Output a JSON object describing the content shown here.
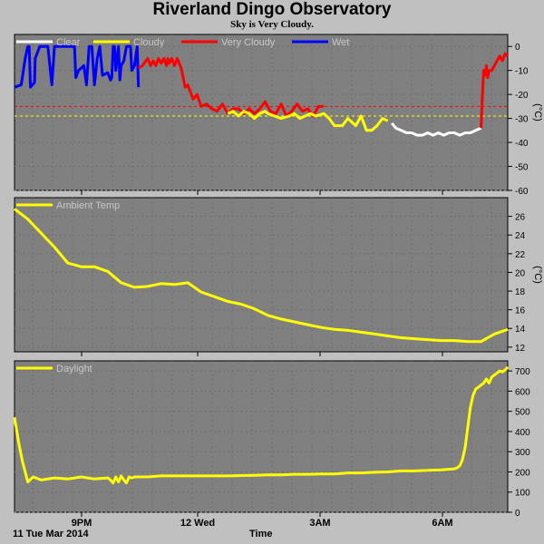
{
  "title": "Riverland Dingo Observatory",
  "subtitle": "Sky is Very Cloudy.",
  "time_label": "Time",
  "date_label": "11 Tue Mar 2014",
  "x_ticks": [
    "9PM",
    "12 Wed",
    "3AM",
    "6AM"
  ],
  "colors": {
    "background": "#c0c0c0",
    "panel": "#808080",
    "clear": "#ffffff",
    "cloudy": "#ffff00",
    "very_cloudy": "#ff0000",
    "wet": "#0000ff",
    "threshold_red": "#ff0000",
    "threshold_yellow": "#ffff00"
  },
  "chart_data": [
    {
      "type": "line",
      "name": "sky",
      "unit": "(°C)",
      "ylim": [
        -60,
        5
      ],
      "yticks": [
        0,
        -10,
        -20,
        -30,
        -40,
        -50,
        -60
      ],
      "grid": true,
      "legend": [
        "Clear",
        "Cloudy",
        "Very Cloudy",
        "Wet"
      ],
      "thresholds": [
        -25,
        -29
      ],
      "series": [
        {
          "name": "Wet",
          "color": "#0000ff",
          "x": [
            0,
            5,
            8,
            10,
            11,
            12,
            15,
            15.5,
            19,
            25,
            28,
            30,
            40,
            45,
            46,
            48,
            52,
            54,
            56,
            58,
            60,
            62,
            64,
            66,
            70,
            72,
            73,
            74,
            75,
            76,
            78,
            79,
            80,
            82,
            84,
            87,
            88,
            90,
            92,
            93
          ],
          "y": [
            -17,
            -16,
            -5,
            0,
            0,
            -17,
            -15,
            -5,
            0,
            0,
            -16,
            0,
            0,
            0,
            -13,
            -10,
            -8,
            -16,
            0,
            0,
            -16,
            -5,
            0,
            -12,
            -11,
            -14,
            -13,
            0,
            0,
            -10,
            0,
            -14,
            -8,
            -6,
            0,
            0,
            -10,
            -8,
            0,
            -17
          ]
        },
        {
          "name": "Very Cloudy",
          "color": "#ff0000",
          "x": [
            93,
            96,
            100,
            102,
            104,
            106,
            108,
            110,
            112,
            114,
            115,
            116,
            117,
            118,
            120,
            122,
            125,
            128,
            130,
            134,
            137,
            140,
            144,
            148,
            152,
            156,
            160,
            164,
            168,
            172,
            176,
            180,
            184,
            188,
            192,
            196,
            200,
            204,
            208,
            212,
            216,
            220,
            224,
            228,
            232
          ],
          "y": [
            -9,
            -8,
            -5,
            -8,
            -6,
            -8,
            -5,
            -7,
            -5,
            -8,
            -5,
            -7,
            -6,
            -5,
            -8,
            -5,
            -9,
            -17,
            -16,
            -22,
            -20,
            -25,
            -24,
            -26,
            -27,
            -24,
            -28,
            -26,
            -26,
            -28,
            -26,
            -28,
            -26,
            -23,
            -27,
            -28,
            -24,
            -29,
            -27,
            -24,
            -27,
            -26,
            -29,
            -25,
            -25
          ]
        },
        {
          "name": "Cloudy",
          "color": "#ffff00",
          "x": [
            160,
            164,
            168,
            172,
            176,
            180,
            184,
            188,
            190,
            200,
            206,
            210,
            214,
            218,
            222,
            226,
            232,
            236,
            240,
            246,
            250,
            256,
            260,
            264,
            268,
            272,
            276,
            280
          ],
          "y": [
            -28,
            -27,
            -29,
            -27,
            -28,
            -30,
            -28,
            -27,
            -28,
            -30,
            -29,
            -28,
            -30,
            -29,
            -28,
            -29,
            -28,
            -30,
            -33,
            -33,
            -30,
            -33,
            -29,
            -35,
            -35,
            -33,
            -30,
            -31
          ]
        },
        {
          "name": "Clear",
          "color": "#ffffff",
          "x": [
            283,
            286,
            290,
            294,
            298,
            302,
            306,
            310,
            314,
            318,
            322,
            326,
            330,
            334,
            338,
            342,
            346,
            350
          ],
          "y": [
            -32,
            -34,
            -35,
            -36,
            -36,
            -37,
            -37,
            -36,
            -37,
            -36,
            -37,
            -36,
            -36,
            -37,
            -36,
            -36,
            -35,
            -34
          ]
        },
        {
          "name": "Very Cloudy",
          "color": "#ff0000",
          "x": [
            350,
            351,
            352,
            353,
            354,
            355,
            356,
            358,
            360,
            362,
            364,
            366,
            368,
            370
          ],
          "y": [
            -34,
            -20,
            -10,
            -12,
            -8,
            -13,
            -10,
            -10,
            -8,
            -6,
            -4,
            -6,
            -3,
            -4
          ]
        }
      ]
    },
    {
      "type": "line",
      "name": "ambient",
      "unit": "(°C)",
      "ylim": [
        11.5,
        28
      ],
      "yticks": [
        12,
        14,
        16,
        18,
        20,
        22,
        24,
        26
      ],
      "grid": true,
      "legend": [
        "Ambient Temp"
      ],
      "series": [
        {
          "name": "Ambient Temp",
          "color": "#ffff00",
          "x": [
            0,
            10,
            20,
            30,
            40,
            50,
            60,
            70,
            80,
            90,
            100,
            110,
            120,
            130,
            140,
            150,
            160,
            170,
            180,
            190,
            200,
            210,
            220,
            230,
            240,
            250,
            260,
            270,
            280,
            290,
            300,
            310,
            320,
            330,
            340,
            350,
            360,
            370
          ],
          "y": [
            26.8,
            25.7,
            24.2,
            22.7,
            21.0,
            20.6,
            20.6,
            20.1,
            18.9,
            18.4,
            18.5,
            18.8,
            18.7,
            18.9,
            17.9,
            17.4,
            16.9,
            16.6,
            16.1,
            15.4,
            15.0,
            14.7,
            14.4,
            14.1,
            13.9,
            13.8,
            13.6,
            13.4,
            13.2,
            13.0,
            12.9,
            12.8,
            12.7,
            12.7,
            12.6,
            12.6,
            13.4,
            13.9
          ]
        }
      ]
    },
    {
      "type": "line",
      "name": "daylight",
      "unit": "",
      "ylim": [
        0,
        750
      ],
      "yticks": [
        0,
        100,
        200,
        300,
        400,
        500,
        600,
        700
      ],
      "grid": true,
      "legend": [
        "Daylight"
      ],
      "series": [
        {
          "name": "Daylight",
          "color": "#ffff00",
          "x": [
            0,
            3,
            6,
            10,
            14,
            20,
            30,
            40,
            50,
            60,
            70,
            72,
            74,
            76,
            78,
            80,
            82,
            84,
            86,
            88,
            90,
            100,
            110,
            120,
            130,
            140,
            150,
            160,
            170,
            180,
            190,
            200,
            210,
            220,
            230,
            240,
            250,
            260,
            270,
            280,
            290,
            300,
            310,
            320,
            330,
            332,
            334,
            336,
            338,
            340,
            342,
            344,
            346,
            348,
            350,
            352,
            354,
            356,
            358,
            360,
            362,
            364,
            366,
            368,
            370
          ],
          "y": [
            470,
            350,
            250,
            150,
            175,
            160,
            170,
            165,
            175,
            165,
            170,
            160,
            145,
            175,
            150,
            180,
            160,
            145,
            175,
            170,
            175,
            175,
            180,
            180,
            180,
            180,
            180,
            180,
            182,
            183,
            185,
            185,
            188,
            188,
            190,
            190,
            195,
            195,
            198,
            200,
            205,
            205,
            208,
            210,
            215,
            220,
            230,
            260,
            320,
            420,
            520,
            580,
            610,
            620,
            630,
            640,
            660,
            640,
            670,
            680,
            690,
            700,
            695,
            705,
            720
          ]
        }
      ]
    }
  ]
}
